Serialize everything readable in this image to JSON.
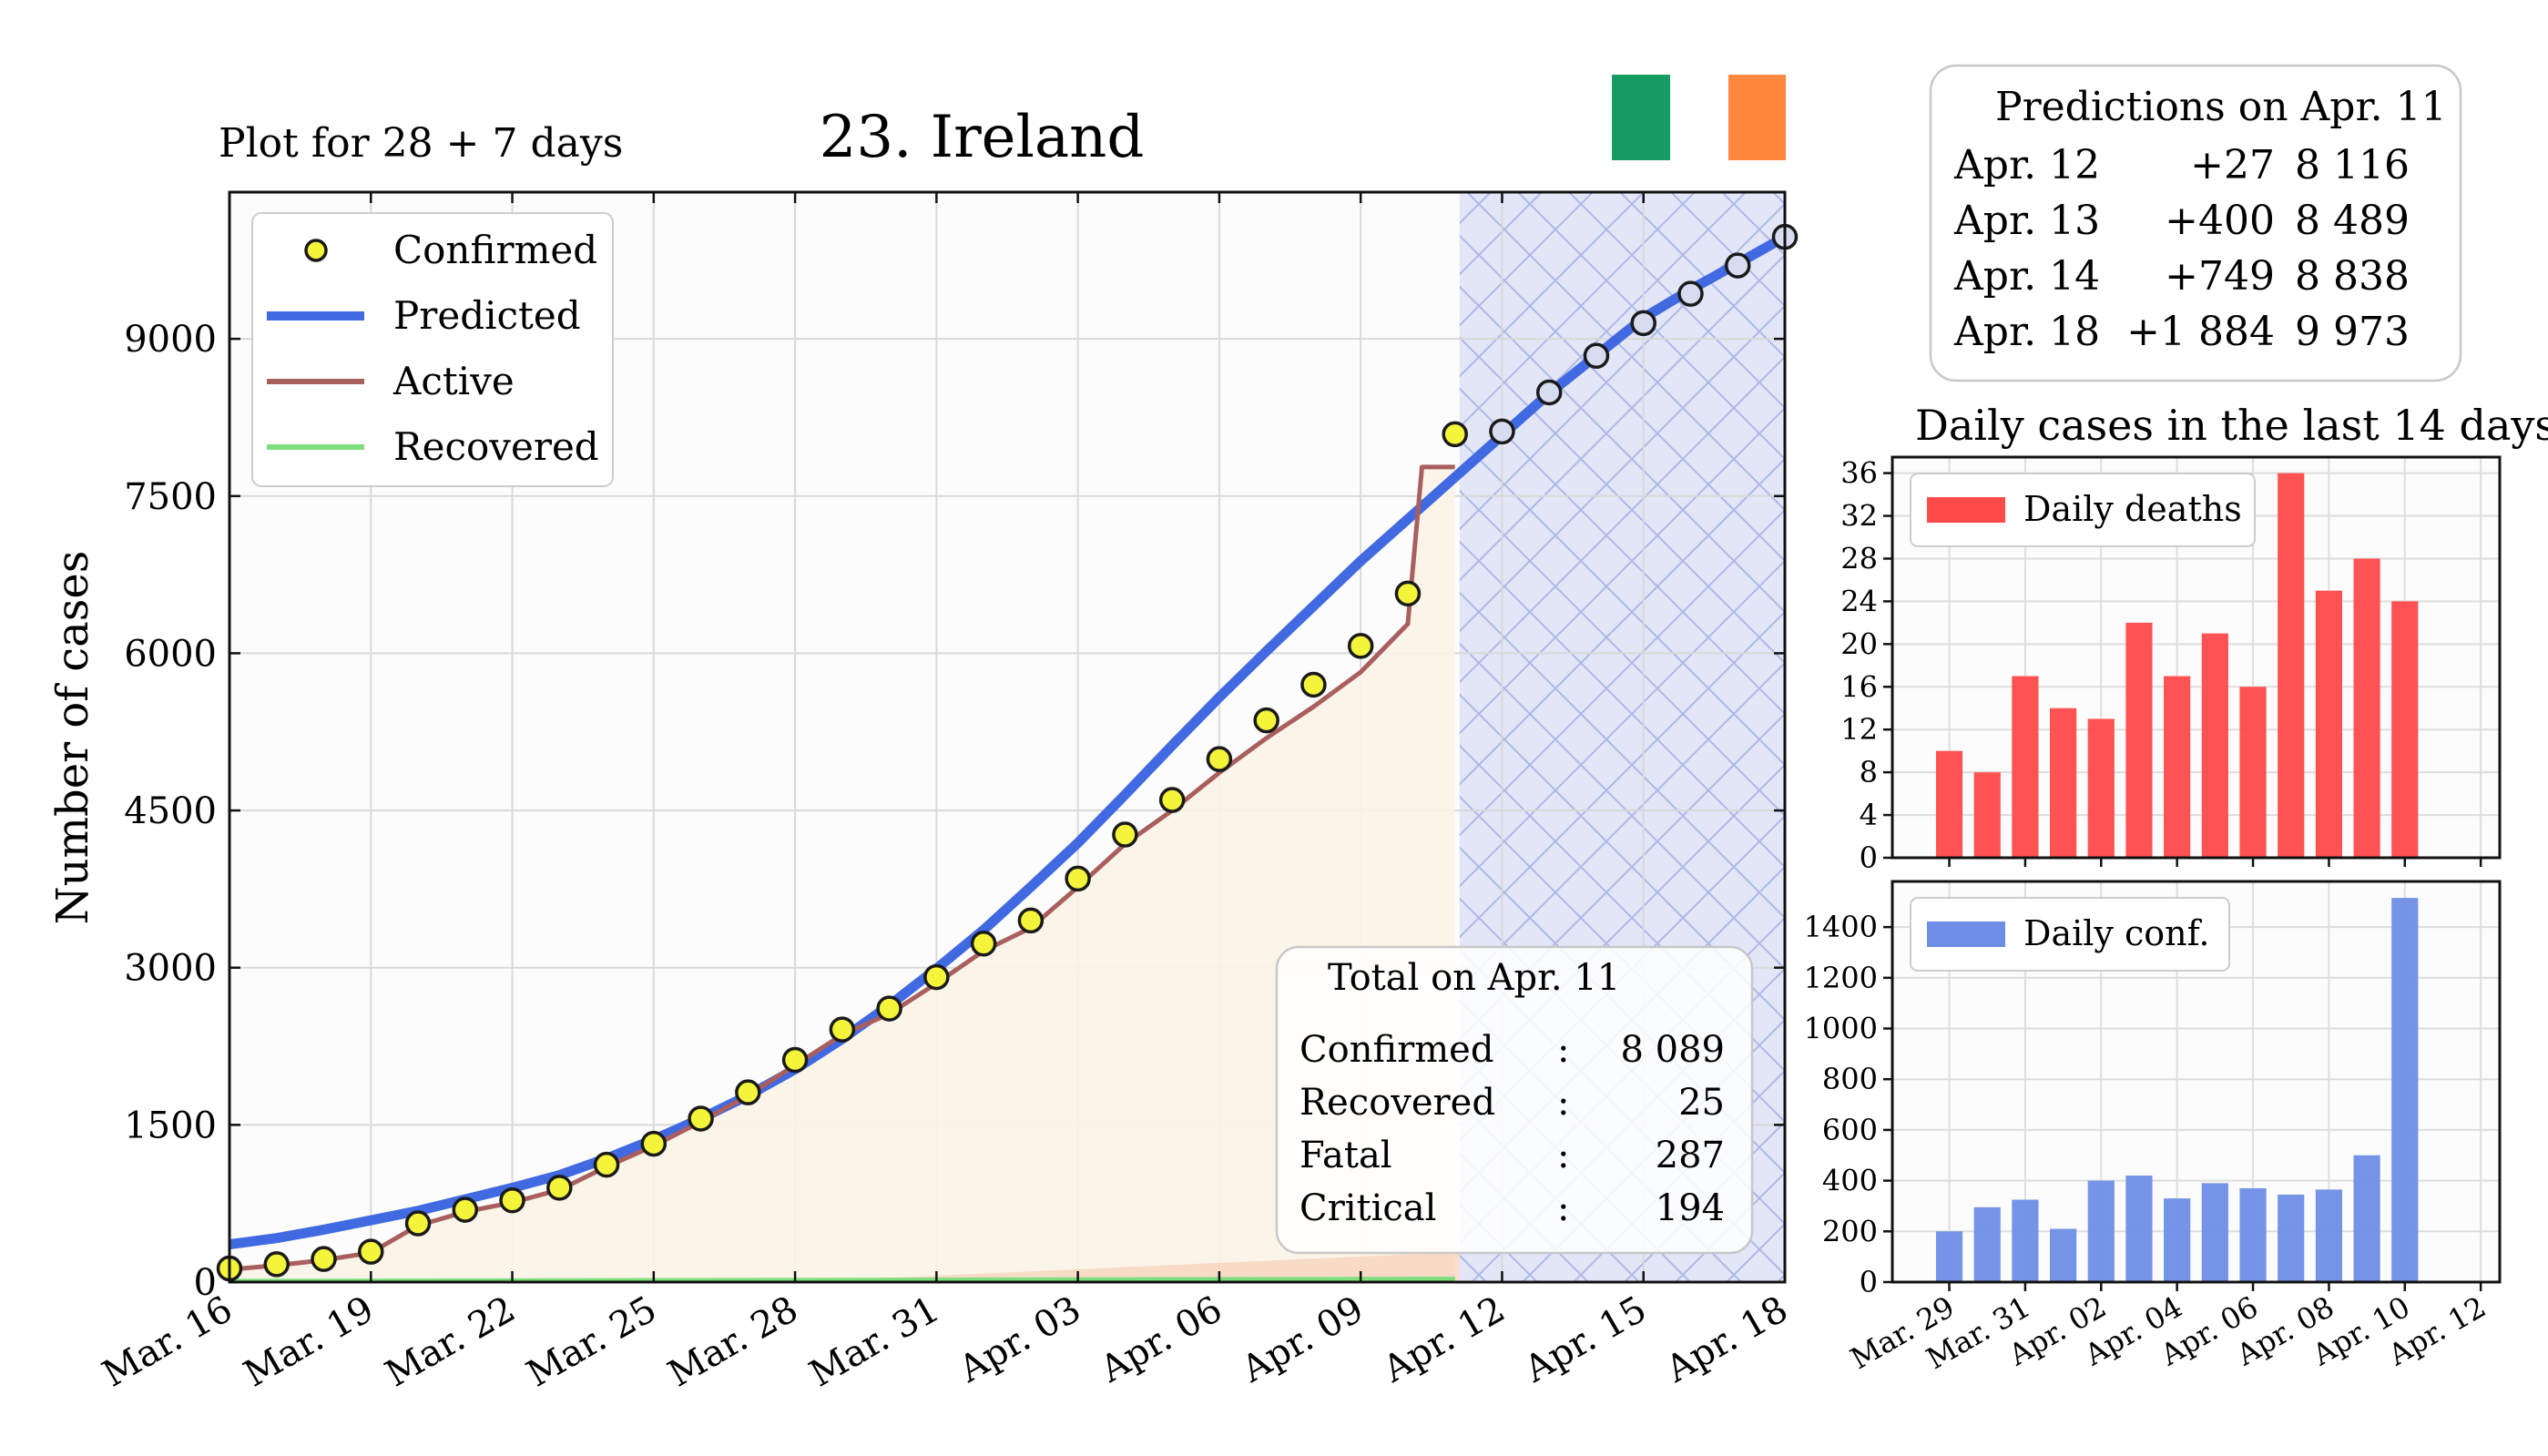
{
  "header": {
    "subtitle": "Plot for 28 + 7 days",
    "title": "23. Ireland",
    "flag_colors": [
      "#169B62",
      "#FFFFFF",
      "#FF883E"
    ]
  },
  "predictions": {
    "title": "Predictions on Apr. 11",
    "rows": [
      {
        "date": "Apr. 12",
        "delta": "+27",
        "total": "8 116"
      },
      {
        "date": "Apr. 13",
        "delta": "+400",
        "total": "8 489"
      },
      {
        "date": "Apr. 14",
        "delta": "+749",
        "total": "8 838"
      },
      {
        "date": "Apr. 18",
        "delta": "+1 884",
        "total": "9 973"
      }
    ]
  },
  "totals": {
    "title": "Total on Apr. 11",
    "rows": [
      {
        "label": "Confirmed",
        "sep": ":",
        "value": "8 089"
      },
      {
        "label": "Recovered",
        "sep": ":",
        "value": "25"
      },
      {
        "label": "Fatal",
        "sep": ":",
        "value": "287"
      },
      {
        "label": "Critical",
        "sep": ":",
        "value": "194"
      }
    ]
  },
  "daily_title": "Daily cases in the last 14 days",
  "colors": {
    "predicted": "#4169e1",
    "active": "#aa5f5f",
    "recovered": "#7ddf7d",
    "confirmed_marker": "#f4f43a",
    "forecast_marker": "#d8dcf0",
    "deaths_bar": "#ff4a4a",
    "conf_bar": "#6e8ee6",
    "forecast_region": "#dde2f6",
    "active_fill": "#fbf3e6"
  },
  "chart_data": [
    {
      "type": "line",
      "title": "23. Ireland",
      "ylabel": "Number of cases",
      "xlim": [
        0,
        33
      ],
      "ylim": [
        0,
        10400
      ],
      "yticks": [
        0,
        1500,
        3000,
        4500,
        6000,
        7500,
        9000
      ],
      "ytick_labels": [
        "0",
        "1500",
        "3000",
        "4500",
        "6000",
        "7500",
        "9000"
      ],
      "xticks": [
        0,
        3,
        6,
        9,
        12,
        15,
        18,
        21,
        24,
        27,
        30,
        33
      ],
      "xtick_labels": [
        "Mar. 16",
        "Mar. 19",
        "Mar. 22",
        "Mar. 25",
        "Mar. 28",
        "Mar. 31",
        "Apr. 03",
        "Apr. 06",
        "Apr. 09",
        "Apr. 12",
        "Apr. 15",
        "Apr. 18"
      ],
      "forecast_start": 26.1,
      "legend": [
        "Confirmed",
        "Predicted",
        "Active",
        "Recovered"
      ],
      "legend_position": "top-left",
      "series": [
        {
          "name": "Confirmed",
          "x": [
            0,
            1,
            2,
            3,
            4,
            5,
            6,
            7,
            8,
            9,
            10,
            11,
            12,
            13,
            14,
            15,
            16,
            17,
            18,
            19,
            20,
            21,
            22,
            23,
            24,
            25,
            26
          ],
          "values": [
            130,
            170,
            220,
            290,
            560,
            690,
            780,
            900,
            1120,
            1320,
            1560,
            1810,
            2120,
            2410,
            2610,
            2910,
            3230,
            3450,
            3850,
            4270,
            4600,
            4990,
            5360,
            5700,
            6070,
            6570,
            8090
          ]
        },
        {
          "name": "Confirmed forecast",
          "x": [
            27,
            28,
            29,
            30,
            31,
            32,
            33
          ],
          "values": [
            8116,
            8489,
            8838,
            9150,
            9430,
            9700,
            9973
          ]
        },
        {
          "name": "Predicted",
          "x": [
            0,
            1,
            2,
            3,
            4,
            5,
            6,
            7,
            8,
            9,
            10,
            11,
            12,
            13,
            14,
            15,
            16,
            17,
            18,
            19,
            20,
            21,
            22,
            23,
            24,
            25,
            26,
            27,
            28,
            29,
            30,
            31,
            32,
            33
          ],
          "values": [
            360,
            420,
            500,
            590,
            680,
            790,
            900,
            1020,
            1180,
            1360,
            1560,
            1780,
            2030,
            2320,
            2640,
            2990,
            3360,
            3770,
            4190,
            4650,
            5120,
            5580,
            6020,
            6450,
            6880,
            7280,
            7680,
            8080,
            8480,
            8840,
            9200,
            9470,
            9720,
            9973
          ]
        },
        {
          "name": "Active",
          "x": [
            0,
            1,
            2,
            3,
            4,
            5,
            6,
            7,
            8,
            9,
            10,
            11,
            12,
            13,
            14,
            15,
            16,
            17,
            18,
            19,
            20,
            21,
            22,
            23,
            24,
            25,
            25.3,
            26
          ],
          "values": [
            120,
            160,
            210,
            280,
            540,
            670,
            760,
            880,
            1100,
            1300,
            1530,
            1780,
            2070,
            2360,
            2560,
            2850,
            3160,
            3380,
            3770,
            4180,
            4500,
            4860,
            5190,
            5490,
            5820,
            6280,
            7777,
            7777
          ]
        },
        {
          "name": "Recovered",
          "x": [
            0,
            26
          ],
          "values": [
            5,
            25
          ]
        }
      ]
    },
    {
      "type": "bar",
      "legend": [
        "Daily deaths"
      ],
      "legend_position": "top-left",
      "categories": [
        "Mar. 29",
        "Mar. 30",
        "Mar. 31",
        "Apr. 01",
        "Apr. 02",
        "Apr. 03",
        "Apr. 04",
        "Apr. 05",
        "Apr. 06",
        "Apr. 07",
        "Apr. 08",
        "Apr. 09",
        "Apr. 10",
        "Apr. 11"
      ],
      "series": [
        {
          "name": "Daily deaths",
          "values": [
            10,
            8,
            17,
            14,
            13,
            22,
            17,
            21,
            16,
            36,
            25,
            28,
            24,
            0
          ]
        }
      ],
      "ylim": [
        0,
        37.5
      ],
      "yticks": [
        0,
        4,
        8,
        12,
        16,
        20,
        24,
        28,
        32,
        36
      ],
      "xtick_labels": [
        "Mar. 29",
        "Mar. 31",
        "Apr. 02",
        "Apr. 04",
        "Apr. 06",
        "Apr. 08",
        "Apr. 10",
        "Apr. 12"
      ]
    },
    {
      "type": "bar",
      "legend": [
        "Daily conf."
      ],
      "legend_position": "top-left",
      "categories": [
        "Mar. 29",
        "Mar. 30",
        "Mar. 31",
        "Apr. 01",
        "Apr. 02",
        "Apr. 03",
        "Apr. 04",
        "Apr. 05",
        "Apr. 06",
        "Apr. 07",
        "Apr. 08",
        "Apr. 09",
        "Apr. 10",
        "Apr. 11"
      ],
      "series": [
        {
          "name": "Daily conf.",
          "values": [
            200,
            295,
            325,
            210,
            400,
            420,
            330,
            390,
            370,
            345,
            365,
            500,
            1515,
            0
          ]
        }
      ],
      "ylim": [
        0,
        1580
      ],
      "yticks": [
        0,
        200,
        400,
        600,
        800,
        1000,
        1200,
        1400
      ],
      "xtick_labels": [
        "Mar. 29",
        "Mar. 31",
        "Apr. 02",
        "Apr. 04",
        "Apr. 06",
        "Apr. 08",
        "Apr. 10",
        "Apr. 12"
      ]
    }
  ]
}
